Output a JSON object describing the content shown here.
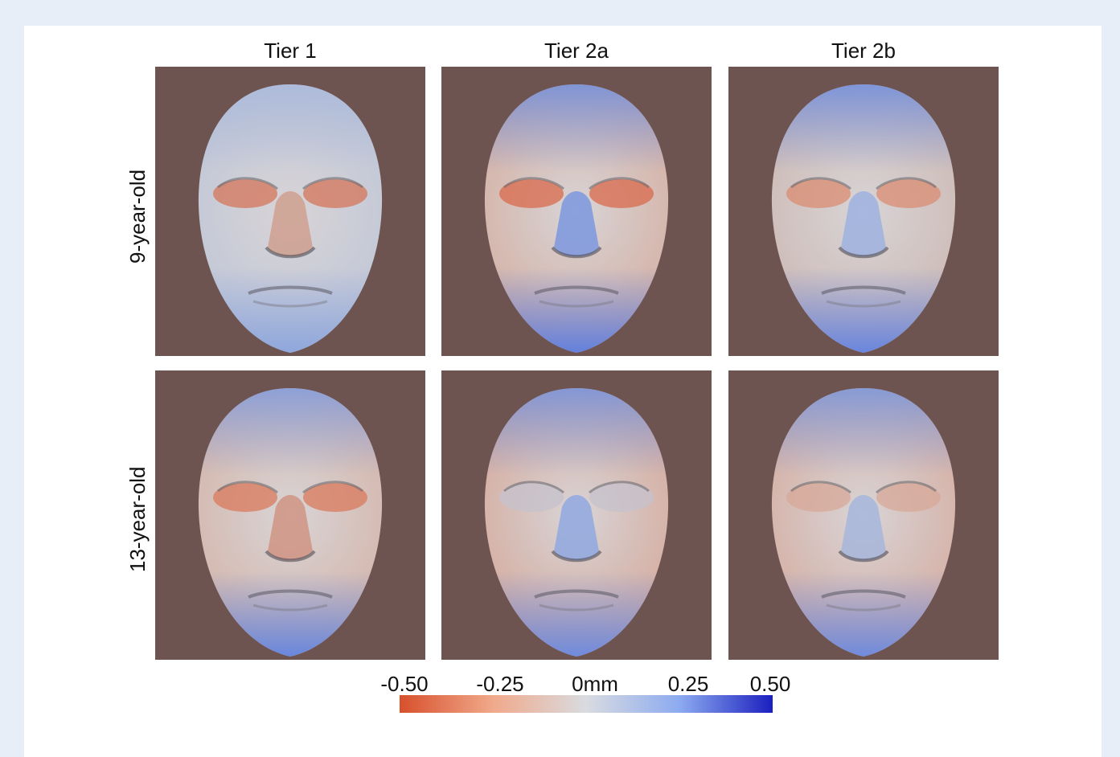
{
  "columns": [
    "Tier 1",
    "Tier 2a",
    "Tier 2b"
  ],
  "rows": [
    "9-year-old",
    "13-year-old"
  ],
  "colorbar": {
    "ticks": [
      "-0.50",
      "-0.25",
      "0mm",
      "0.25",
      "0.50"
    ]
  },
  "colors": {
    "panel_background": "#6d5450",
    "negative": "#d8502c",
    "neutral": "#d9dbe0",
    "positive": "#1b1fbf"
  }
}
